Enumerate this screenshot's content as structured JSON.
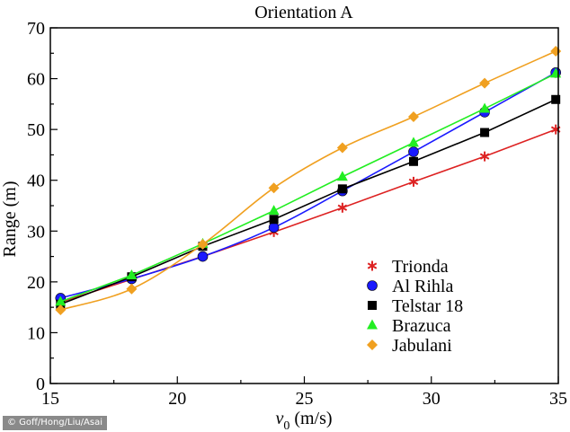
{
  "chart_data": {
    "type": "line",
    "title": "Orientation A",
    "xlabel_var": "v",
    "xlabel_sub": "0",
    "xlabel_unit": " (m/s)",
    "ylabel": "Range (m)",
    "xlim": [
      15,
      35
    ],
    "ylim": [
      0,
      70
    ],
    "xticks": [
      15,
      20,
      25,
      30,
      35
    ],
    "yticks": [
      0,
      10,
      20,
      30,
      40,
      50,
      60,
      70
    ],
    "grid": false,
    "legend_position": "bottom-right",
    "x": [
      15.4,
      18.2,
      21.0,
      23.8,
      26.5,
      29.3,
      32.1,
      34.9
    ],
    "series": [
      {
        "name": "Trionda",
        "color": "#dd2222",
        "marker": "asterisk",
        "smooth": false,
        "values": [
          16.0,
          20.5,
          25.0,
          29.8,
          34.6,
          39.7,
          44.7,
          50.0
        ]
      },
      {
        "name": "Al Rihla",
        "color": "#1a1aff",
        "marker": "circle",
        "smooth": true,
        "values": [
          16.8,
          20.6,
          25.0,
          30.7,
          37.9,
          45.6,
          53.4,
          61.2
        ]
      },
      {
        "name": "Telstar 18",
        "color": "#000000",
        "marker": "square",
        "smooth": false,
        "values": [
          15.6,
          21.0,
          27.0,
          32.3,
          38.3,
          43.7,
          49.4,
          55.9
        ]
      },
      {
        "name": "Brazuca",
        "color": "#22ee22",
        "marker": "triangle",
        "smooth": false,
        "values": [
          16.1,
          21.3,
          27.5,
          34.0,
          40.7,
          47.4,
          54.1,
          61.0
        ]
      },
      {
        "name": "Jabulani",
        "color": "#f0a020",
        "marker": "diamond",
        "smooth": true,
        "values": [
          14.5,
          18.6,
          27.4,
          38.5,
          46.4,
          52.5,
          59.1,
          65.4
        ]
      }
    ]
  },
  "credit": "© Goff/Hong/Liu/Asai"
}
